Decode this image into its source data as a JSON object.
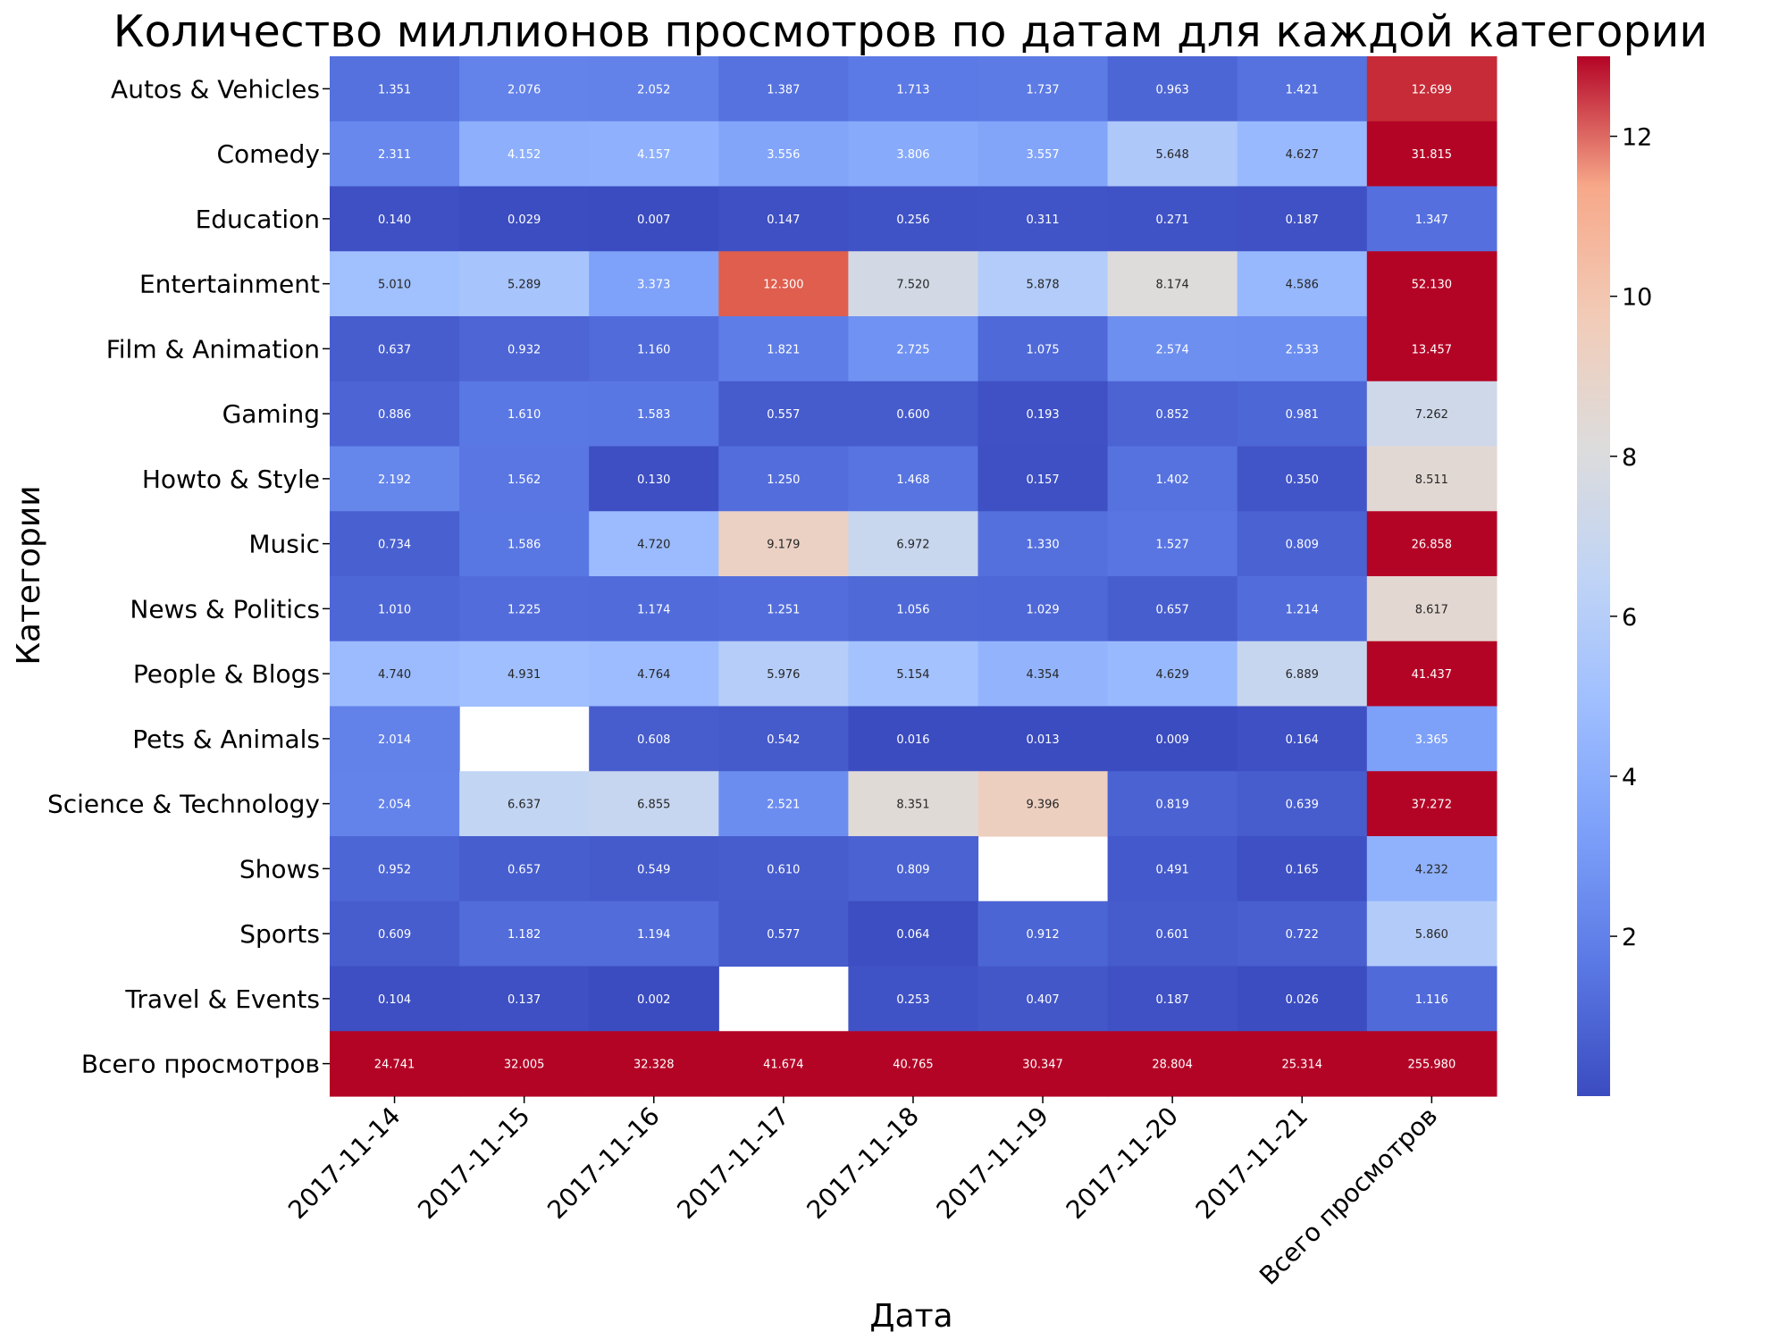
{
  "chart_data": {
    "type": "heatmap",
    "title": "Количество миллионов просмотров по датам для каждой категории",
    "xlabel": "Дата",
    "ylabel": "Категории",
    "columns": [
      "2017-11-14",
      "2017-11-15",
      "2017-11-16",
      "2017-11-17",
      "2017-11-18",
      "2017-11-19",
      "2017-11-20",
      "2017-11-21",
      "Всего просмотров"
    ],
    "rows": [
      "Autos & Vehicles",
      "Comedy",
      "Education",
      "Entertainment",
      "Film & Animation",
      "Gaming",
      "Howto & Style",
      "Music",
      "News & Politics",
      "People & Blogs",
      "Pets & Animals",
      "Science & Technology",
      "Shows",
      "Sports",
      "Travel & Events",
      "Всего просмотров"
    ],
    "values": [
      [
        1.351,
        2.076,
        2.052,
        1.387,
        1.713,
        1.737,
        0.963,
        1.421,
        12.699
      ],
      [
        2.311,
        4.152,
        4.157,
        3.556,
        3.806,
        3.557,
        5.648,
        4.627,
        31.815
      ],
      [
        0.14,
        0.029,
        0.007,
        0.147,
        0.256,
        0.311,
        0.271,
        0.187,
        1.347
      ],
      [
        5.01,
        5.289,
        3.373,
        12.3,
        7.52,
        5.878,
        8.174,
        4.586,
        52.13
      ],
      [
        0.637,
        0.932,
        1.16,
        1.821,
        2.725,
        1.075,
        2.574,
        2.533,
        13.457
      ],
      [
        0.886,
        1.61,
        1.583,
        0.557,
        0.6,
        0.193,
        0.852,
        0.981,
        7.262
      ],
      [
        2.192,
        1.562,
        0.13,
        1.25,
        1.468,
        0.157,
        1.402,
        0.35,
        8.511
      ],
      [
        0.734,
        1.586,
        4.72,
        9.179,
        6.972,
        1.33,
        1.527,
        0.809,
        26.858
      ],
      [
        1.01,
        1.225,
        1.174,
        1.251,
        1.056,
        1.029,
        0.657,
        1.214,
        8.617
      ],
      [
        4.74,
        4.931,
        4.764,
        5.976,
        5.154,
        4.354,
        4.629,
        6.889,
        41.437
      ],
      [
        2.014,
        null,
        0.608,
        0.542,
        0.016,
        0.013,
        0.009,
        0.164,
        3.365
      ],
      [
        2.054,
        6.637,
        6.855,
        2.521,
        8.351,
        9.396,
        0.819,
        0.639,
        37.272
      ],
      [
        0.952,
        0.657,
        0.549,
        0.61,
        0.809,
        null,
        0.491,
        0.165,
        4.232
      ],
      [
        0.609,
        1.182,
        1.194,
        0.577,
        0.064,
        0.912,
        0.601,
        0.722,
        5.86
      ],
      [
        0.104,
        0.137,
        0.002,
        null,
        0.253,
        0.407,
        0.187,
        0.026,
        1.116
      ],
      [
        24.741,
        32.005,
        32.328,
        41.674,
        40.765,
        30.347,
        28.804,
        25.314,
        255.98
      ]
    ],
    "colormap": "coolwarm",
    "vmin": 0.002,
    "vmax": 13.0,
    "colorbar_ticks": [
      2,
      4,
      6,
      8,
      10,
      12
    ],
    "colors": {
      "low": "#3b4cc0",
      "mid": "#dddddd",
      "high": "#b40426"
    },
    "missing_cells": "blank"
  }
}
